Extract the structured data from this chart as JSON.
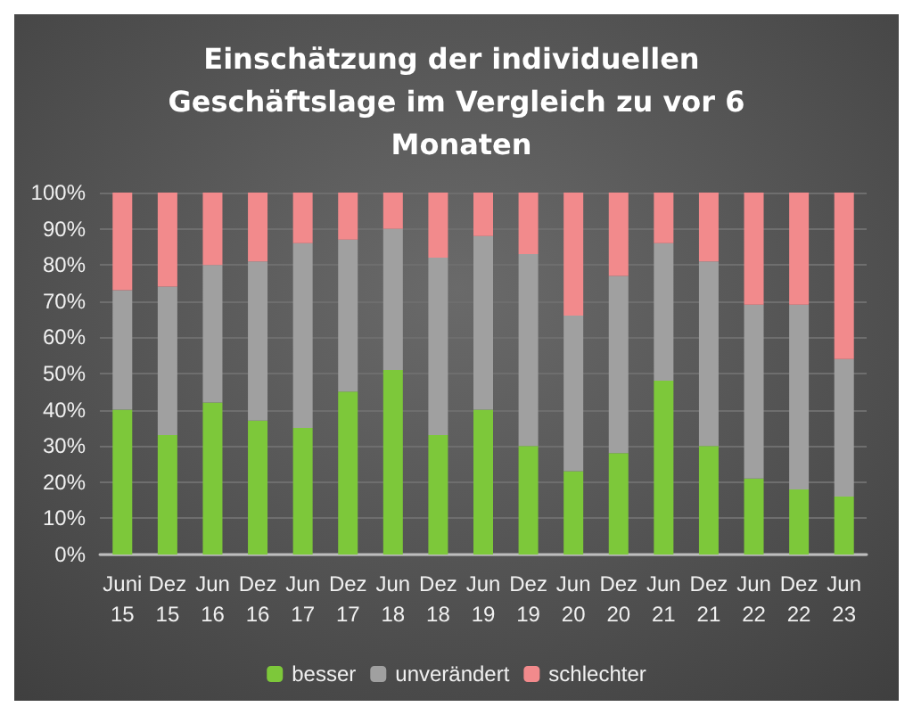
{
  "chart_data": {
    "type": "bar",
    "stacked": true,
    "title": "Einschätzung der individuellen Geschäftslage im Vergleich zu vor 6 Monaten",
    "categories": [
      "Juni 15",
      "Dez 15",
      "Jun 16",
      "Dez 16",
      "Jun 17",
      "Dez 17",
      "Jun 18",
      "Dez 18",
      "Jun 19",
      "Dez 19",
      "Jun 20",
      "Dez 20",
      "Jun 21",
      "Dez 21",
      "Jun 22",
      "Dez 22",
      "Jun 23"
    ],
    "series": [
      {
        "name": "besser",
        "color": "#7dc83a",
        "values": [
          40,
          33,
          42,
          37,
          35,
          45,
          51,
          33,
          40,
          30,
          23,
          28,
          48,
          30,
          21,
          18,
          16
        ]
      },
      {
        "name": "unverändert",
        "color": "#a0a0a0",
        "values": [
          33,
          41,
          38,
          44,
          51,
          42,
          39,
          49,
          48,
          53,
          43,
          49,
          38,
          51,
          48,
          51,
          38
        ]
      },
      {
        "name": "schlechter",
        "color": "#f28a8c",
        "values": [
          27,
          26,
          20,
          19,
          14,
          13,
          10,
          18,
          12,
          17,
          34,
          23,
          14,
          19,
          31,
          31,
          46
        ]
      }
    ],
    "ylim": [
      0,
      100
    ],
    "yticks": [
      {
        "value": 0,
        "label": "0%"
      },
      {
        "value": 10,
        "label": "10%"
      },
      {
        "value": 20,
        "label": "20%"
      },
      {
        "value": 30,
        "label": "30%"
      },
      {
        "value": 40,
        "label": "40%"
      },
      {
        "value": 50,
        "label": "50%"
      },
      {
        "value": 60,
        "label": "60%"
      },
      {
        "value": 70,
        "label": "70%"
      },
      {
        "value": 80,
        "label": "80%"
      },
      {
        "value": 90,
        "label": "90%"
      },
      {
        "value": 100,
        "label": "100%"
      }
    ],
    "grid": "y",
    "legend": "bottom"
  }
}
